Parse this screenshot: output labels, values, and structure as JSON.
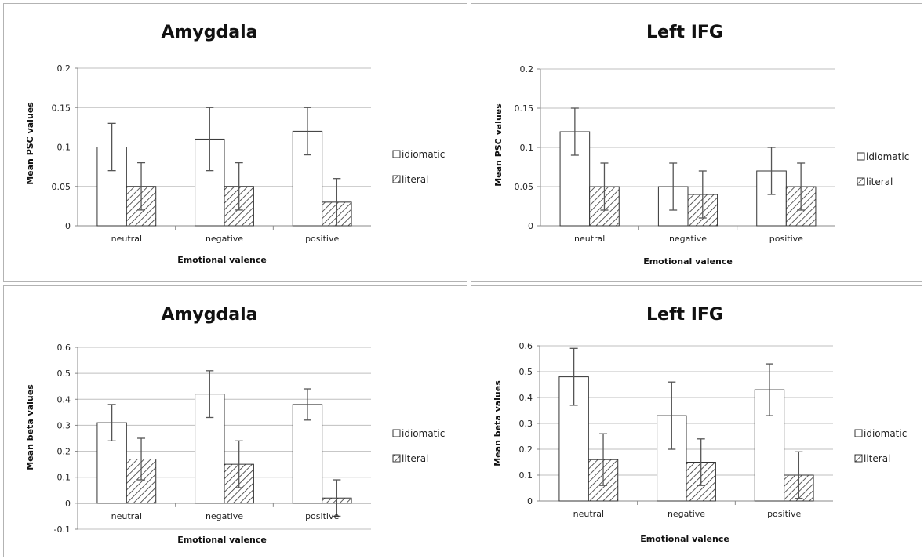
{
  "patterns": {
    "literal": "hatched",
    "idiomatic": "solid-white"
  },
  "colors": {
    "bar_stroke": "#333333",
    "grid": "#bfbfbf",
    "error_bar": "#555555",
    "panel_border": "#b3b3b3"
  },
  "chart_data": [
    {
      "type": "bar",
      "title": "Amygdala",
      "xlabel": "Emotional valence",
      "ylabel": "Mean PSC values",
      "categories": [
        "neutral",
        "negative",
        "positive"
      ],
      "ylim": [
        0,
        0.2
      ],
      "yticks": [
        "0.2",
        "0.15",
        "0.1",
        "0.05",
        "0"
      ],
      "ytick_values": [
        0.2,
        0.15,
        0.1,
        0.05,
        0
      ],
      "grid": true,
      "legend": "right",
      "series": [
        {
          "name": "idiomatic",
          "values": [
            0.1,
            0.11,
            0.12
          ],
          "err_low": [
            0.07,
            0.07,
            0.09
          ],
          "err_high": [
            0.13,
            0.15,
            0.15
          ]
        },
        {
          "name": "literal",
          "values": [
            0.05,
            0.05,
            0.03
          ],
          "err_low": [
            0.02,
            0.02,
            0.0
          ],
          "err_high": [
            0.08,
            0.08,
            0.06
          ]
        }
      ]
    },
    {
      "type": "bar",
      "title": "Left IFG",
      "xlabel": "Emotional valence",
      "ylabel": "Mean PSC values",
      "categories": [
        "neutral",
        "negative",
        "positive"
      ],
      "ylim": [
        0,
        0.2
      ],
      "yticks": [
        "0.2",
        "0.15",
        "0.1",
        "0.05",
        "0"
      ],
      "ytick_values": [
        0.2,
        0.15,
        0.1,
        0.05,
        0
      ],
      "grid": true,
      "legend": "right",
      "series": [
        {
          "name": "idiomatic",
          "values": [
            0.12,
            0.05,
            0.07
          ],
          "err_low": [
            0.09,
            0.02,
            0.04
          ],
          "err_high": [
            0.15,
            0.08,
            0.1
          ]
        },
        {
          "name": "literal",
          "values": [
            0.05,
            0.04,
            0.05
          ],
          "err_low": [
            0.02,
            0.01,
            0.02
          ],
          "err_high": [
            0.08,
            0.07,
            0.08
          ]
        }
      ]
    },
    {
      "type": "bar",
      "title": "Amygdala",
      "xlabel": "Emotional valence",
      "ylabel": "Mean beta values",
      "categories": [
        "neutral",
        "negative",
        "positive"
      ],
      "ylim": [
        -0.1,
        0.6
      ],
      "yticks": [
        "0.6",
        "0.5",
        "0.4",
        "0.3",
        "0.2",
        "0.1",
        "0",
        "-0.1"
      ],
      "ytick_values": [
        0.6,
        0.5,
        0.4,
        0.3,
        0.2,
        0.1,
        0,
        -0.1
      ],
      "grid": true,
      "legend": "right",
      "series": [
        {
          "name": "idiomatic",
          "values": [
            0.31,
            0.42,
            0.38
          ],
          "err_low": [
            0.24,
            0.33,
            0.32
          ],
          "err_high": [
            0.38,
            0.51,
            0.44
          ]
        },
        {
          "name": "literal",
          "values": [
            0.17,
            0.15,
            0.02
          ],
          "err_low": [
            0.09,
            0.06,
            -0.05
          ],
          "err_high": [
            0.25,
            0.24,
            0.09
          ]
        }
      ]
    },
    {
      "type": "bar",
      "title": "Left IFG",
      "xlabel": "Emotional valence",
      "ylabel": "Mean beta values",
      "categories": [
        "neutral",
        "negative",
        "positive"
      ],
      "ylim": [
        0,
        0.6
      ],
      "yticks": [
        "0.6",
        "0.5",
        "0.4",
        "0.3",
        "0.2",
        "0.1",
        "0"
      ],
      "ytick_values": [
        0.6,
        0.5,
        0.4,
        0.3,
        0.2,
        0.1,
        0
      ],
      "grid": true,
      "legend": "right",
      "series": [
        {
          "name": "idiomatic",
          "values": [
            0.48,
            0.33,
            0.43
          ],
          "err_low": [
            0.37,
            0.2,
            0.33
          ],
          "err_high": [
            0.59,
            0.46,
            0.53
          ]
        },
        {
          "name": "literal",
          "values": [
            0.16,
            0.15,
            0.1
          ],
          "err_low": [
            0.06,
            0.06,
            0.01
          ],
          "err_high": [
            0.26,
            0.24,
            0.19
          ]
        }
      ]
    }
  ]
}
